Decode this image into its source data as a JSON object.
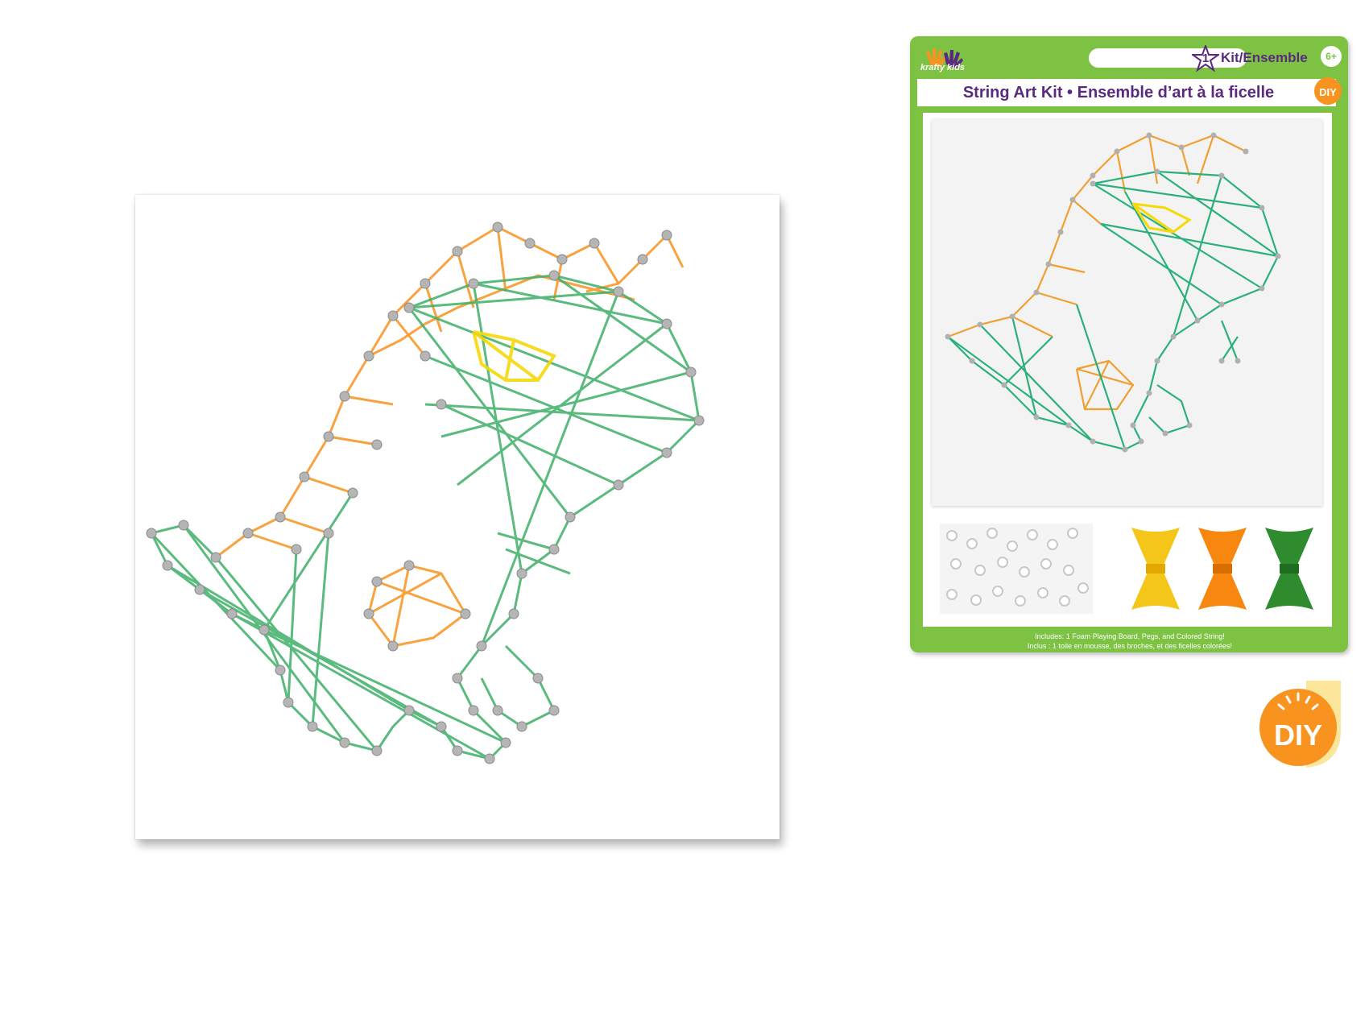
{
  "package": {
    "brand": "krafty kids",
    "count_number": "1",
    "count_label": "Kit/Ensemble",
    "age": "6+",
    "title": "String Art Kit • Ensemble d’art à la ficelle",
    "diy_badge": "DIY",
    "includes_en": "Includes: 1 Foam Playing Board, Pegs, and Colored String!",
    "includes_fr": "Inclus : 1 toile en mousse, des broches, et des ficelles colorées!"
  },
  "diy_badge_large": "DIY",
  "colors": {
    "package_green": "#7dc243",
    "brand_purple": "#5a2a7f",
    "diy_orange": "#f7931e",
    "string_green": "#3fae68",
    "string_orange": "#f7931e",
    "string_yellow": "#f5d90a"
  },
  "string_colors": [
    "yellow",
    "orange",
    "green"
  ]
}
